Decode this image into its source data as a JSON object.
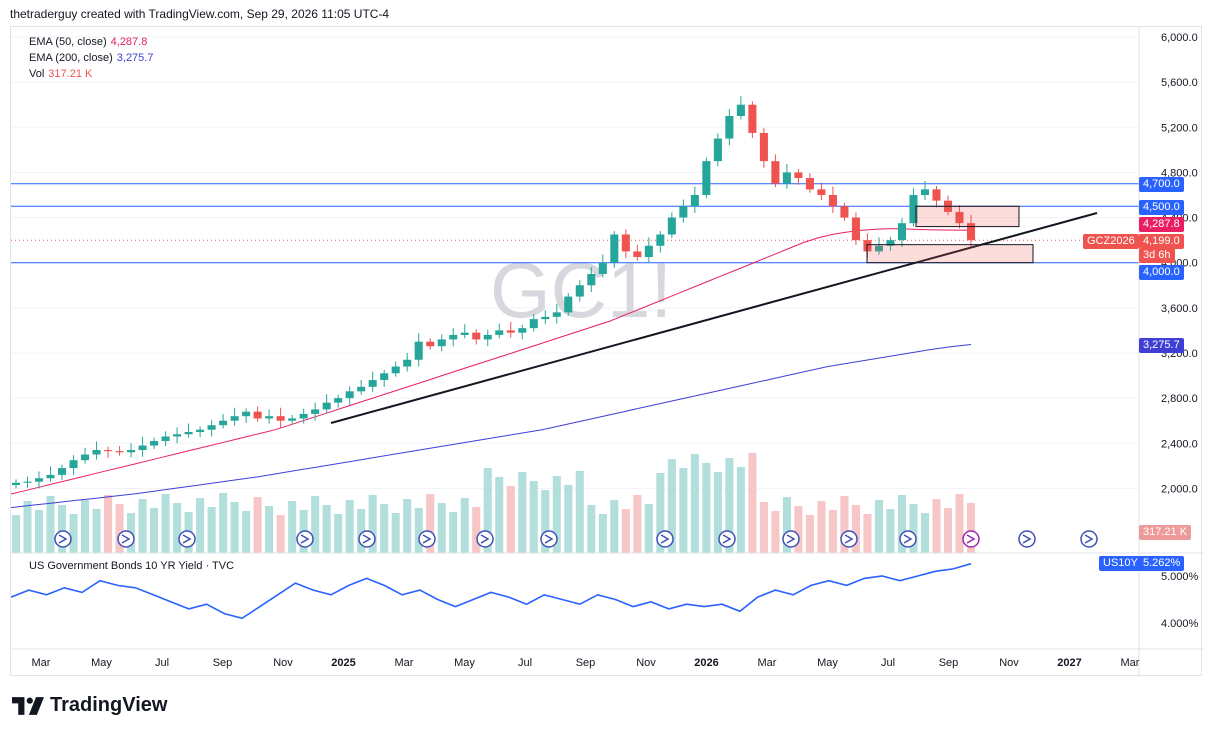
{
  "header": "thetraderguy created with TradingView.com, Sep 29, 2026 11:05 UTC-4",
  "legend": {
    "ema50": {
      "label": "EMA (50, close)",
      "value": "4,287.8",
      "color": "#e91e63"
    },
    "ema200": {
      "label": "EMA (200, close)",
      "value": "3,275.7",
      "color": "#3f3fd6"
    },
    "vol": {
      "label": "Vol",
      "value": "317.21 K",
      "color": "#ef5350"
    }
  },
  "watermark": "GC1!",
  "price_labels": {
    "h4700": "4,700.0",
    "h4500": "4,500.0",
    "ema50": "4,287.8",
    "price": "4,199.0",
    "countdown": "3d 6h",
    "h4000": "4,000.0",
    "ema200": "3,275.7",
    "vol": "317.21 K",
    "symbol": "GCZ2026"
  },
  "bottom_pane": {
    "title": "US Government Bonds 10 YR Yield · TVC",
    "symbol_label": "US10Y",
    "value_label": "5.262%",
    "ticks": [
      "5.000%",
      "4.000%"
    ]
  },
  "footer": {
    "brand": "TradingView"
  },
  "chart_data": {
    "type": "line",
    "title": "GC1!",
    "price_axis": {
      "ticks": [
        6000,
        5600,
        5200,
        4800,
        4400,
        4000,
        3600,
        3200,
        2800,
        2400,
        2000
      ],
      "tick_labels": [
        "6,000.0",
        "5,600.0",
        "5,200.0",
        "4,800.0",
        "4,400.0",
        "4,000.0",
        "3,600.0",
        "3,200.0",
        "2,800.0",
        "2,400.0",
        "2,000.0"
      ]
    },
    "time_axis": {
      "labels": [
        "Mar",
        "May",
        "Jul",
        "Sep",
        "Nov",
        "2025",
        "Mar",
        "May",
        "Jul",
        "Sep",
        "Nov",
        "2026",
        "Mar",
        "May",
        "Jul",
        "Sep",
        "Nov",
        "2027",
        "Mar"
      ],
      "bold": [
        "2025",
        "2026",
        "2027"
      ]
    },
    "horizontal_levels": [
      4700,
      4500,
      4000
    ],
    "series": [
      {
        "name": "GC1!",
        "values": [
          2050,
          2060,
          2090,
          2120,
          2180,
          2250,
          2300,
          2340,
          2330,
          2320,
          2340,
          2380,
          2420,
          2460,
          2480,
          2500,
          2520,
          2560,
          2600,
          2640,
          2680,
          2620,
          2640,
          2600,
          2620,
          2660,
          2700,
          2760,
          2800,
          2860,
          2900,
          2960,
          3020,
          3080,
          3140,
          3300,
          3260,
          3320,
          3360,
          3380,
          3320,
          3360,
          3400,
          3380,
          3420,
          3500,
          3520,
          3560,
          3700,
          3800,
          3900,
          4000,
          4250,
          4100,
          4050,
          4150,
          4250,
          4400,
          4500,
          4600,
          4900,
          5100,
          5300,
          5400,
          5150,
          4900,
          4700,
          4800,
          4750,
          4650,
          4600,
          4500,
          4400,
          4200,
          4100,
          4150,
          4200,
          4350,
          4600,
          4650,
          4550,
          4450,
          4350,
          4199
        ]
      },
      {
        "name": "EMA (50, close)",
        "values": [
          1950,
          1980,
          2010,
          2040,
          2070,
          2100,
          2130,
          2160,
          2190,
          2220,
          2250,
          2280,
          2310,
          2340,
          2370,
          2400,
          2430,
          2460,
          2490,
          2520,
          2560,
          2600,
          2640,
          2680,
          2720,
          2760,
          2800,
          2840,
          2880,
          2920,
          2960,
          3000,
          3040,
          3080,
          3120,
          3160,
          3200,
          3240,
          3280,
          3320,
          3360,
          3400,
          3440,
          3480,
          3530,
          3580,
          3630,
          3680,
          3730,
          3780,
          3830,
          3880,
          3930,
          3980,
          4030,
          4080,
          4130,
          4180,
          4220,
          4250,
          4270,
          4285,
          4295,
          4300,
          4300,
          4295,
          4292,
          4290,
          4289,
          4288
        ]
      },
      {
        "name": "EMA (200, close)",
        "values": [
          1830,
          1850,
          1870,
          1890,
          1910,
          1930,
          1950,
          1975,
          2000,
          2025,
          2050,
          2075,
          2100,
          2130,
          2160,
          2190,
          2220,
          2250,
          2280,
          2310,
          2340,
          2370,
          2400,
          2430,
          2460,
          2490,
          2520,
          2560,
          2600,
          2640,
          2680,
          2720,
          2760,
          2800,
          2840,
          2880,
          2920,
          2960,
          3000,
          3040,
          3080,
          3110,
          3140,
          3170,
          3200,
          3230,
          3255,
          3275
        ]
      },
      {
        "name": "US10Y",
        "values": [
          4.55,
          4.7,
          4.6,
          4.75,
          4.65,
          4.9,
          4.8,
          4.75,
          4.6,
          4.45,
          4.3,
          4.4,
          4.2,
          4.1,
          4.35,
          4.6,
          4.85,
          4.7,
          4.6,
          4.8,
          4.95,
          4.8,
          4.6,
          4.7,
          4.5,
          4.35,
          4.5,
          4.65,
          4.55,
          4.4,
          4.6,
          4.5,
          4.4,
          4.6,
          4.5,
          4.35,
          4.45,
          4.3,
          4.4,
          4.35,
          4.4,
          4.25,
          4.55,
          4.7,
          4.6,
          4.8,
          4.9,
          4.8,
          4.95,
          5.0,
          4.9,
          5.0,
          5.1,
          5.15,
          5.262
        ]
      }
    ]
  }
}
